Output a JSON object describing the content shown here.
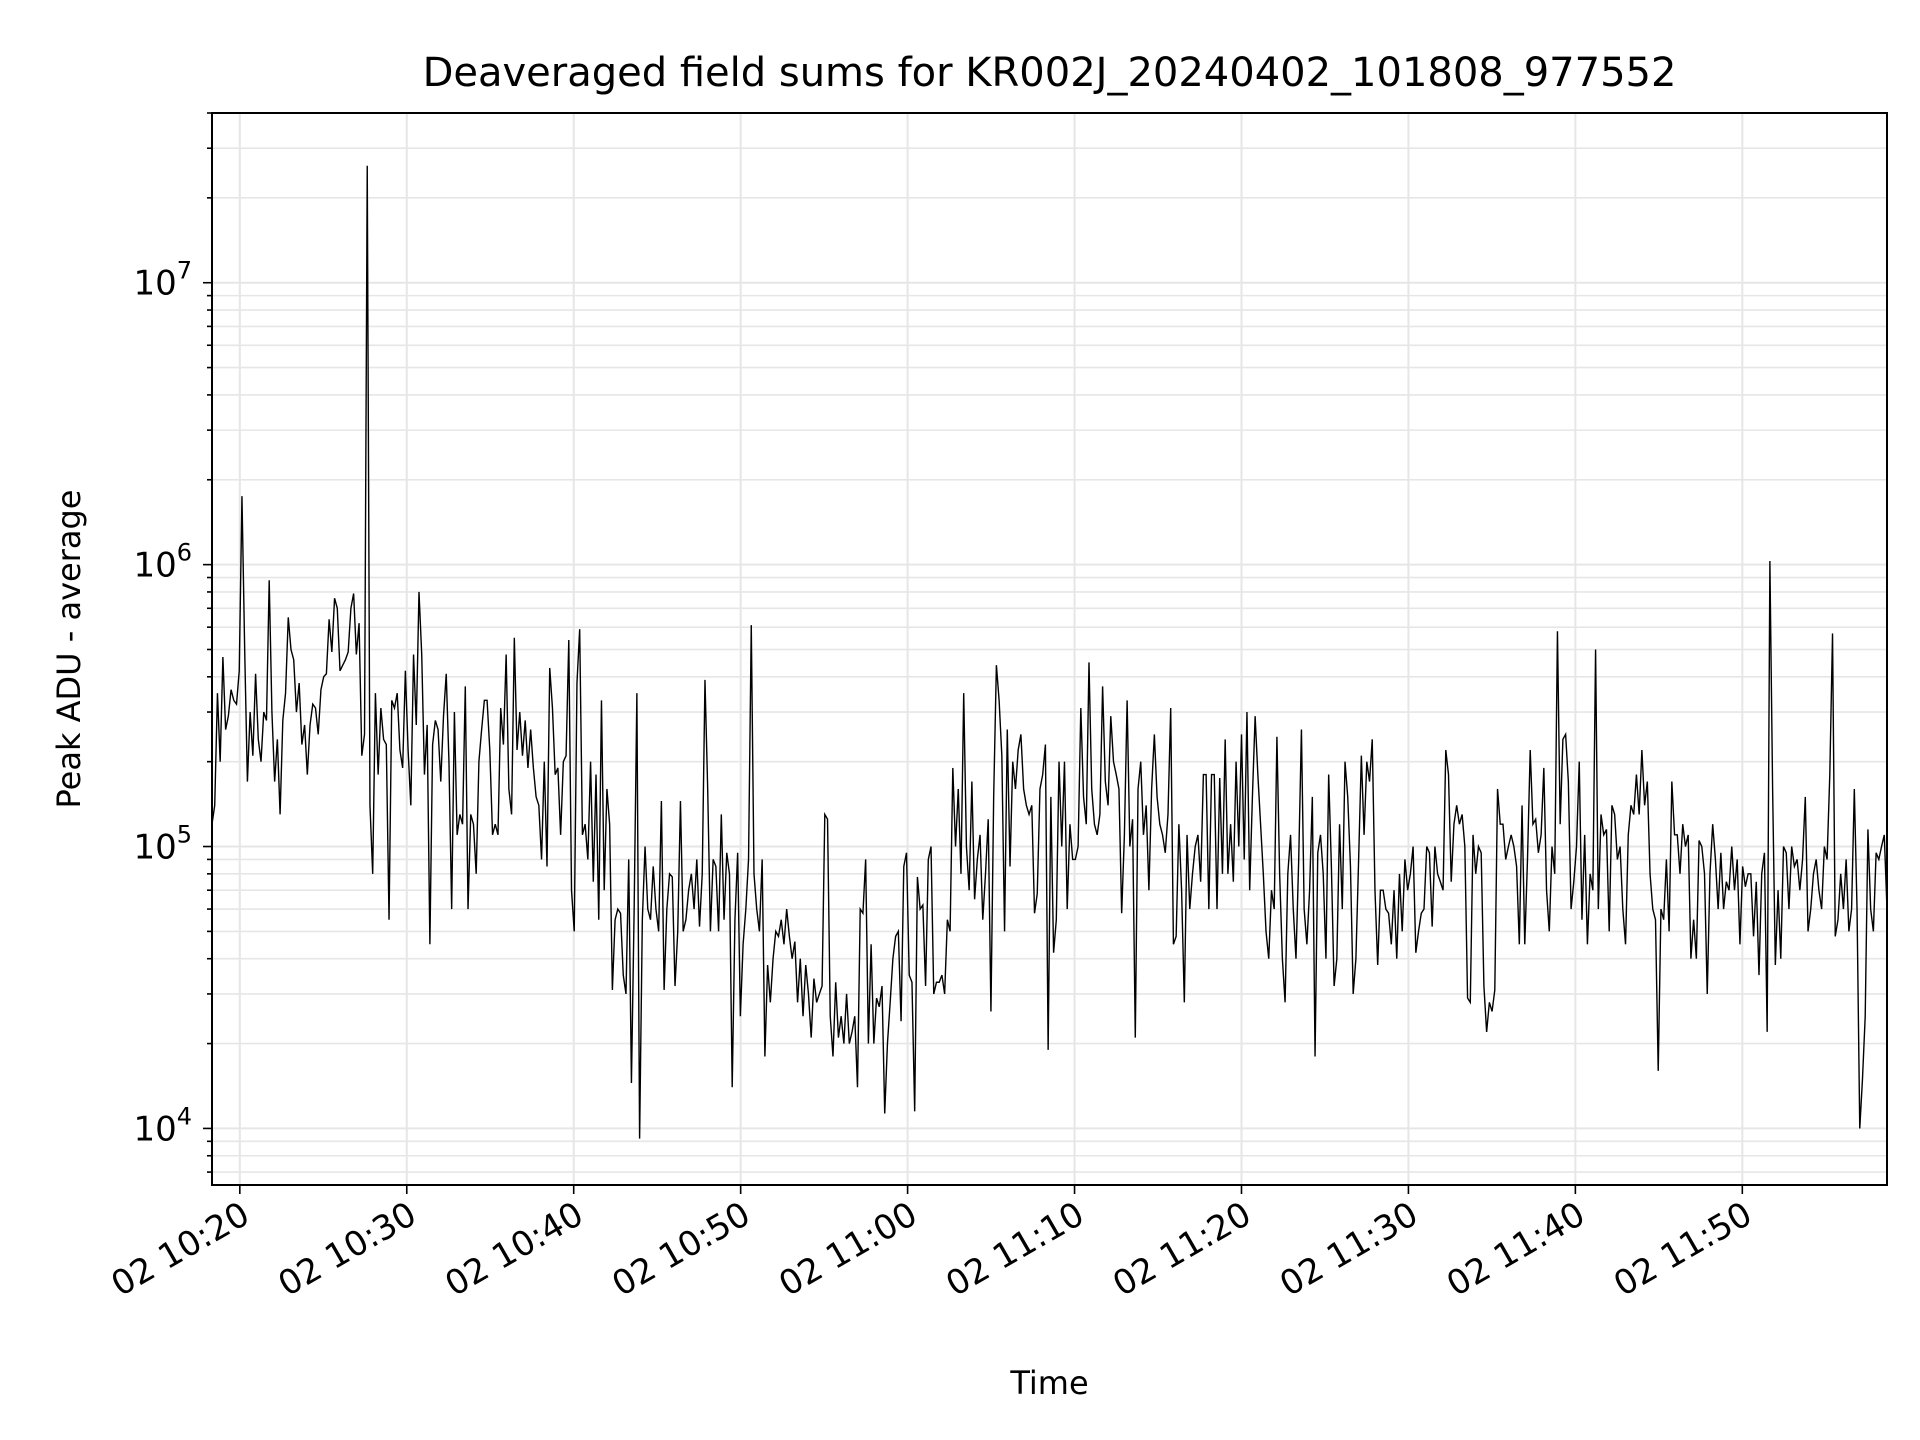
{
  "chart_data": {
    "type": "line",
    "title": "Deaveraged field sums for KR002J_20240402_101808_977552",
    "xlabel": "Time",
    "ylabel": "Peak ADU - average",
    "x_start": "10:18:20",
    "x_end": "11:58:40",
    "xlim": [
      "10:18:20",
      "11:58:40"
    ],
    "ylim": [
      6300,
      40000000
    ],
    "yscale": "log",
    "grid": true,
    "line_color": "#000000",
    "x_ticks": [
      {
        "time": "10:20",
        "label": "02 10:20"
      },
      {
        "time": "10:30",
        "label": "02 10:30"
      },
      {
        "time": "10:40",
        "label": "02 10:40"
      },
      {
        "time": "10:50",
        "label": "02 10:50"
      },
      {
        "time": "11:00",
        "label": "02 11:00"
      },
      {
        "time": "11:10",
        "label": "02 11:10"
      },
      {
        "time": "11:20",
        "label": "02 11:20"
      },
      {
        "time": "11:30",
        "label": "02 11:30"
      },
      {
        "time": "11:40",
        "label": "02 11:40"
      },
      {
        "time": "11:50",
        "label": "02 11:50"
      }
    ],
    "y_ticks": [
      {
        "value": 10000,
        "base": "10",
        "exp": "4"
      },
      {
        "value": 100000,
        "base": "10",
        "exp": "5"
      },
      {
        "value": 1000000,
        "base": "10",
        "exp": "6"
      },
      {
        "value": 10000000,
        "base": "10",
        "exp": "7"
      }
    ],
    "values": [
      120000,
      140000,
      350000,
      200000,
      470000,
      260000,
      290000,
      360000,
      330000,
      320000,
      420000,
      1750000,
      500000,
      170000,
      300000,
      210000,
      410000,
      240000,
      200000,
      300000,
      280000,
      880000,
      300000,
      170000,
      240000,
      130000,
      280000,
      350000,
      650000,
      500000,
      460000,
      300000,
      380000,
      230000,
      270000,
      180000,
      270000,
      320000,
      310000,
      250000,
      360000,
      400000,
      410000,
      640000,
      490000,
      760000,
      700000,
      420000,
      440000,
      460000,
      490000,
      700000,
      790000,
      480000,
      620000,
      210000,
      250000,
      26000000,
      140000,
      80000,
      350000,
      180000,
      310000,
      240000,
      230000,
      55000,
      330000,
      310000,
      350000,
      220000,
      190000,
      420000,
      220000,
      140000,
      480000,
      270000,
      800000,
      480000,
      180000,
      270000,
      45000,
      230000,
      280000,
      260000,
      170000,
      290000,
      410000,
      200000,
      60000,
      300000,
      110000,
      130000,
      120000,
      370000,
      60000,
      130000,
      120000,
      80000,
      200000,
      260000,
      330000,
      330000,
      220000,
      110000,
      120000,
      110000,
      310000,
      230000,
      480000,
      160000,
      130000,
      550000,
      220000,
      300000,
      210000,
      280000,
      190000,
      260000,
      190000,
      150000,
      140000,
      90000,
      200000,
      85000,
      430000,
      310000,
      180000,
      190000,
      110000,
      200000,
      210000,
      540000,
      70000,
      50000,
      380000,
      590000,
      110000,
      120000,
      90000,
      200000,
      75000,
      180000,
      55000,
      330000,
      70000,
      160000,
      120000,
      31000,
      55000,
      60000,
      58000,
      35000,
      30000,
      90000,
      14500,
      60000,
      350000,
      9200,
      55000,
      100000,
      60000,
      55000,
      85000,
      60000,
      50000,
      145000,
      31000,
      60000,
      80000,
      78000,
      32000,
      50000,
      145000,
      50000,
      55000,
      70000,
      80000,
      60000,
      90000,
      52000,
      80000,
      390000,
      160000,
      50000,
      90000,
      85000,
      50000,
      130000,
      55000,
      95000,
      80000,
      14000,
      55000,
      95000,
      25000,
      45000,
      60000,
      90000,
      610000,
      80000,
      60000,
      50000,
      90000,
      18000,
      38000,
      28000,
      40000,
      50000,
      48000,
      55000,
      45000,
      60000,
      48000,
      40000,
      46000,
      28000,
      40000,
      25000,
      38000,
      30000,
      21000,
      34000,
      28000,
      30000,
      32000,
      130000,
      125000,
      25000,
      18000,
      33000,
      21000,
      25000,
      20000,
      30000,
      20000,
      22000,
      25000,
      14000,
      60000,
      58000,
      90000,
      20000,
      45000,
      20000,
      29000,
      27000,
      32000,
      11300,
      20000,
      28000,
      40000,
      48000,
      50000,
      24000,
      85000,
      95000,
      35000,
      33000,
      11500,
      78000,
      60000,
      62000,
      32000,
      90000,
      100000,
      30000,
      33000,
      33000,
      35000,
      30000,
      55000,
      50000,
      190000,
      100000,
      160000,
      80000,
      350000,
      100000,
      70000,
      170000,
      65000,
      90000,
      110000,
      55000,
      80000,
      125000,
      26000,
      150000,
      440000,
      330000,
      210000,
      50000,
      260000,
      85000,
      200000,
      160000,
      220000,
      250000,
      160000,
      140000,
      130000,
      140000,
      58000,
      68000,
      160000,
      180000,
      230000,
      19000,
      150000,
      42000,
      55000,
      200000,
      100000,
      200000,
      60000,
      120000,
      90000,
      90000,
      100000,
      310000,
      150000,
      120000,
      450000,
      160000,
      120000,
      110000,
      130000,
      370000,
      170000,
      140000,
      290000,
      200000,
      180000,
      160000,
      58000,
      110000,
      330000,
      100000,
      125000,
      21000,
      160000,
      200000,
      110000,
      140000,
      70000,
      160000,
      250000,
      150000,
      120000,
      110000,
      95000,
      130000,
      310000,
      45000,
      48000,
      120000,
      70000,
      28000,
      110000,
      60000,
      80000,
      100000,
      110000,
      75000,
      180000,
      180000,
      60000,
      180000,
      180000,
      60000,
      175000,
      80000,
      240000,
      80000,
      120000,
      75000,
      200000,
      100000,
      250000,
      90000,
      300000,
      70000,
      150000,
      290000,
      180000,
      120000,
      80000,
      50000,
      40000,
      70000,
      60000,
      245000,
      80000,
      40000,
      28000,
      80000,
      110000,
      60000,
      40000,
      90000,
      260000,
      60000,
      45000,
      70000,
      150000,
      18000,
      95000,
      110000,
      80000,
      40000,
      180000,
      85000,
      32000,
      40000,
      120000,
      60000,
      200000,
      150000,
      85000,
      30000,
      40000,
      90000,
      210000,
      110000,
      200000,
      170000,
      240000,
      70000,
      38000,
      70000,
      70000,
      60000,
      58000,
      45000,
      70000,
      40000,
      80000,
      50000,
      90000,
      70000,
      80000,
      100000,
      42000,
      50000,
      58000,
      60000,
      100000,
      95000,
      52000,
      100000,
      80000,
      75000,
      70000,
      220000,
      180000,
      75000,
      120000,
      140000,
      120000,
      130000,
      100000,
      29000,
      28000,
      110000,
      80000,
      100000,
      95000,
      32000,
      22000,
      28000,
      26000,
      31000,
      160000,
      120000,
      120000,
      90000,
      100000,
      110000,
      100000,
      85000,
      45000,
      140000,
      45000,
      90000,
      220000,
      120000,
      125000,
      95000,
      110000,
      190000,
      70000,
      50000,
      100000,
      80000,
      580000,
      120000,
      240000,
      250000,
      170000,
      60000,
      75000,
      100000,
      200000,
      55000,
      110000,
      45000,
      80000,
      70000,
      500000,
      60000,
      130000,
      110000,
      115000,
      50000,
      140000,
      130000,
      90000,
      100000,
      60000,
      45000,
      110000,
      140000,
      130000,
      180000,
      130000,
      220000,
      140000,
      170000,
      80000,
      60000,
      55000,
      16000,
      60000,
      55000,
      90000,
      50000,
      170000,
      110000,
      110000,
      80000,
      120000,
      100000,
      110000,
      40000,
      55000,
      40000,
      105000,
      100000,
      80000,
      30000,
      80000,
      120000,
      90000,
      60000,
      95000,
      60000,
      75000,
      70000,
      100000,
      70000,
      90000,
      45000,
      85000,
      72000,
      80000,
      80000,
      48000,
      75000,
      35000,
      80000,
      95000,
      22000,
      1030000,
      160000,
      38000,
      70000,
      40000,
      100000,
      95000,
      60000,
      100000,
      85000,
      90000,
      70000,
      90000,
      150000,
      50000,
      60000,
      80000,
      90000,
      70000,
      60000,
      100000,
      90000,
      180000,
      570000,
      48000,
      55000,
      80000,
      60000,
      90000,
      50000,
      60000,
      160000,
      60000,
      10000,
      15000,
      25000,
      115000,
      60000,
      50000,
      95000,
      90000,
      100000,
      110000,
      60000
    ]
  }
}
